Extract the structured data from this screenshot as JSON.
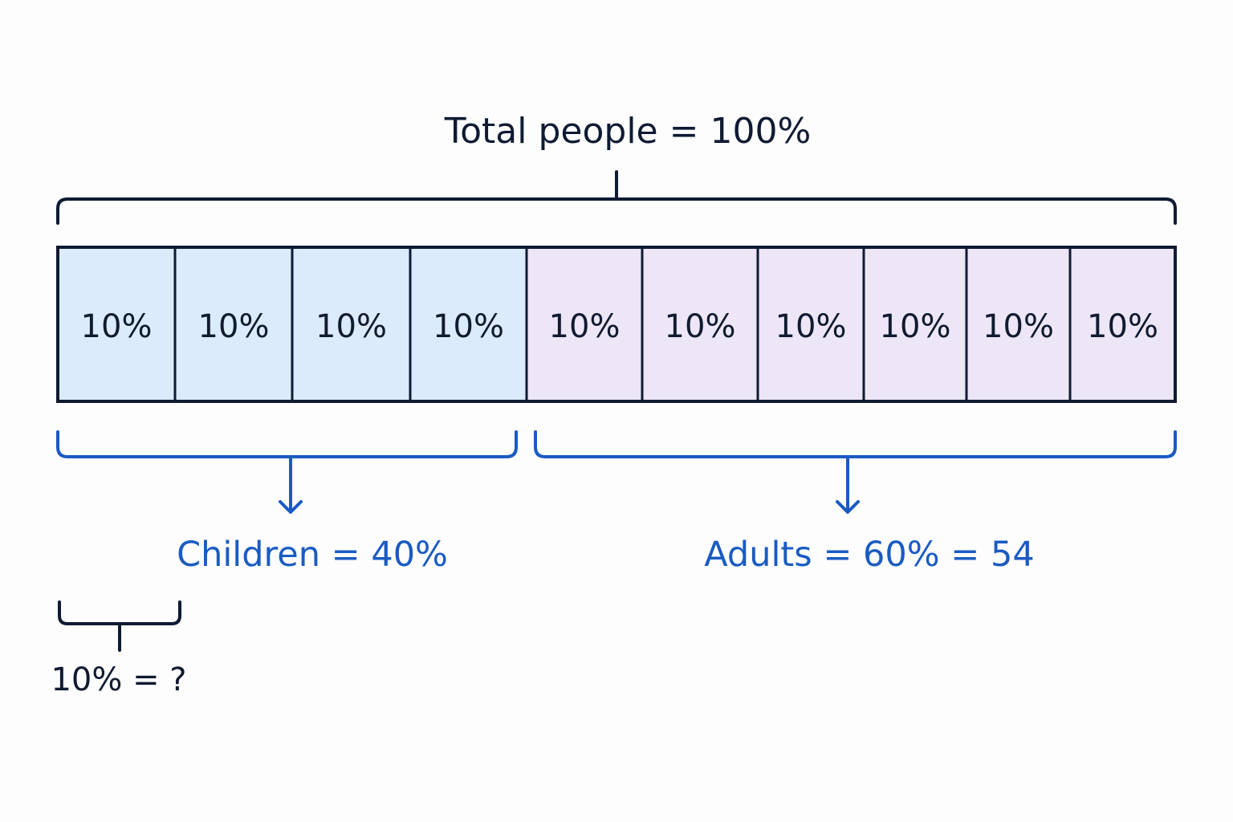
{
  "title": "Total people = 100%",
  "segments": [
    {
      "label": "10%",
      "group": "children"
    },
    {
      "label": "10%",
      "group": "children"
    },
    {
      "label": "10%",
      "group": "children"
    },
    {
      "label": "10%",
      "group": "children"
    },
    {
      "label": "10%",
      "group": "adults"
    },
    {
      "label": "10%",
      "group": "adults"
    },
    {
      "label": "10%",
      "group": "adults"
    },
    {
      "label": "10%",
      "group": "adults"
    },
    {
      "label": "10%",
      "group": "adults"
    },
    {
      "label": "10%",
      "group": "adults"
    }
  ],
  "children_label": "Children = 40%",
  "adults_label": "Adults = 60% = 54",
  "question_label": "10% = ?",
  "colors": {
    "dark": "#0f1a33",
    "accent_blue": "#1a5bc2",
    "children_fill": "#dcebfb",
    "adults_fill": "#ece6f6"
  }
}
